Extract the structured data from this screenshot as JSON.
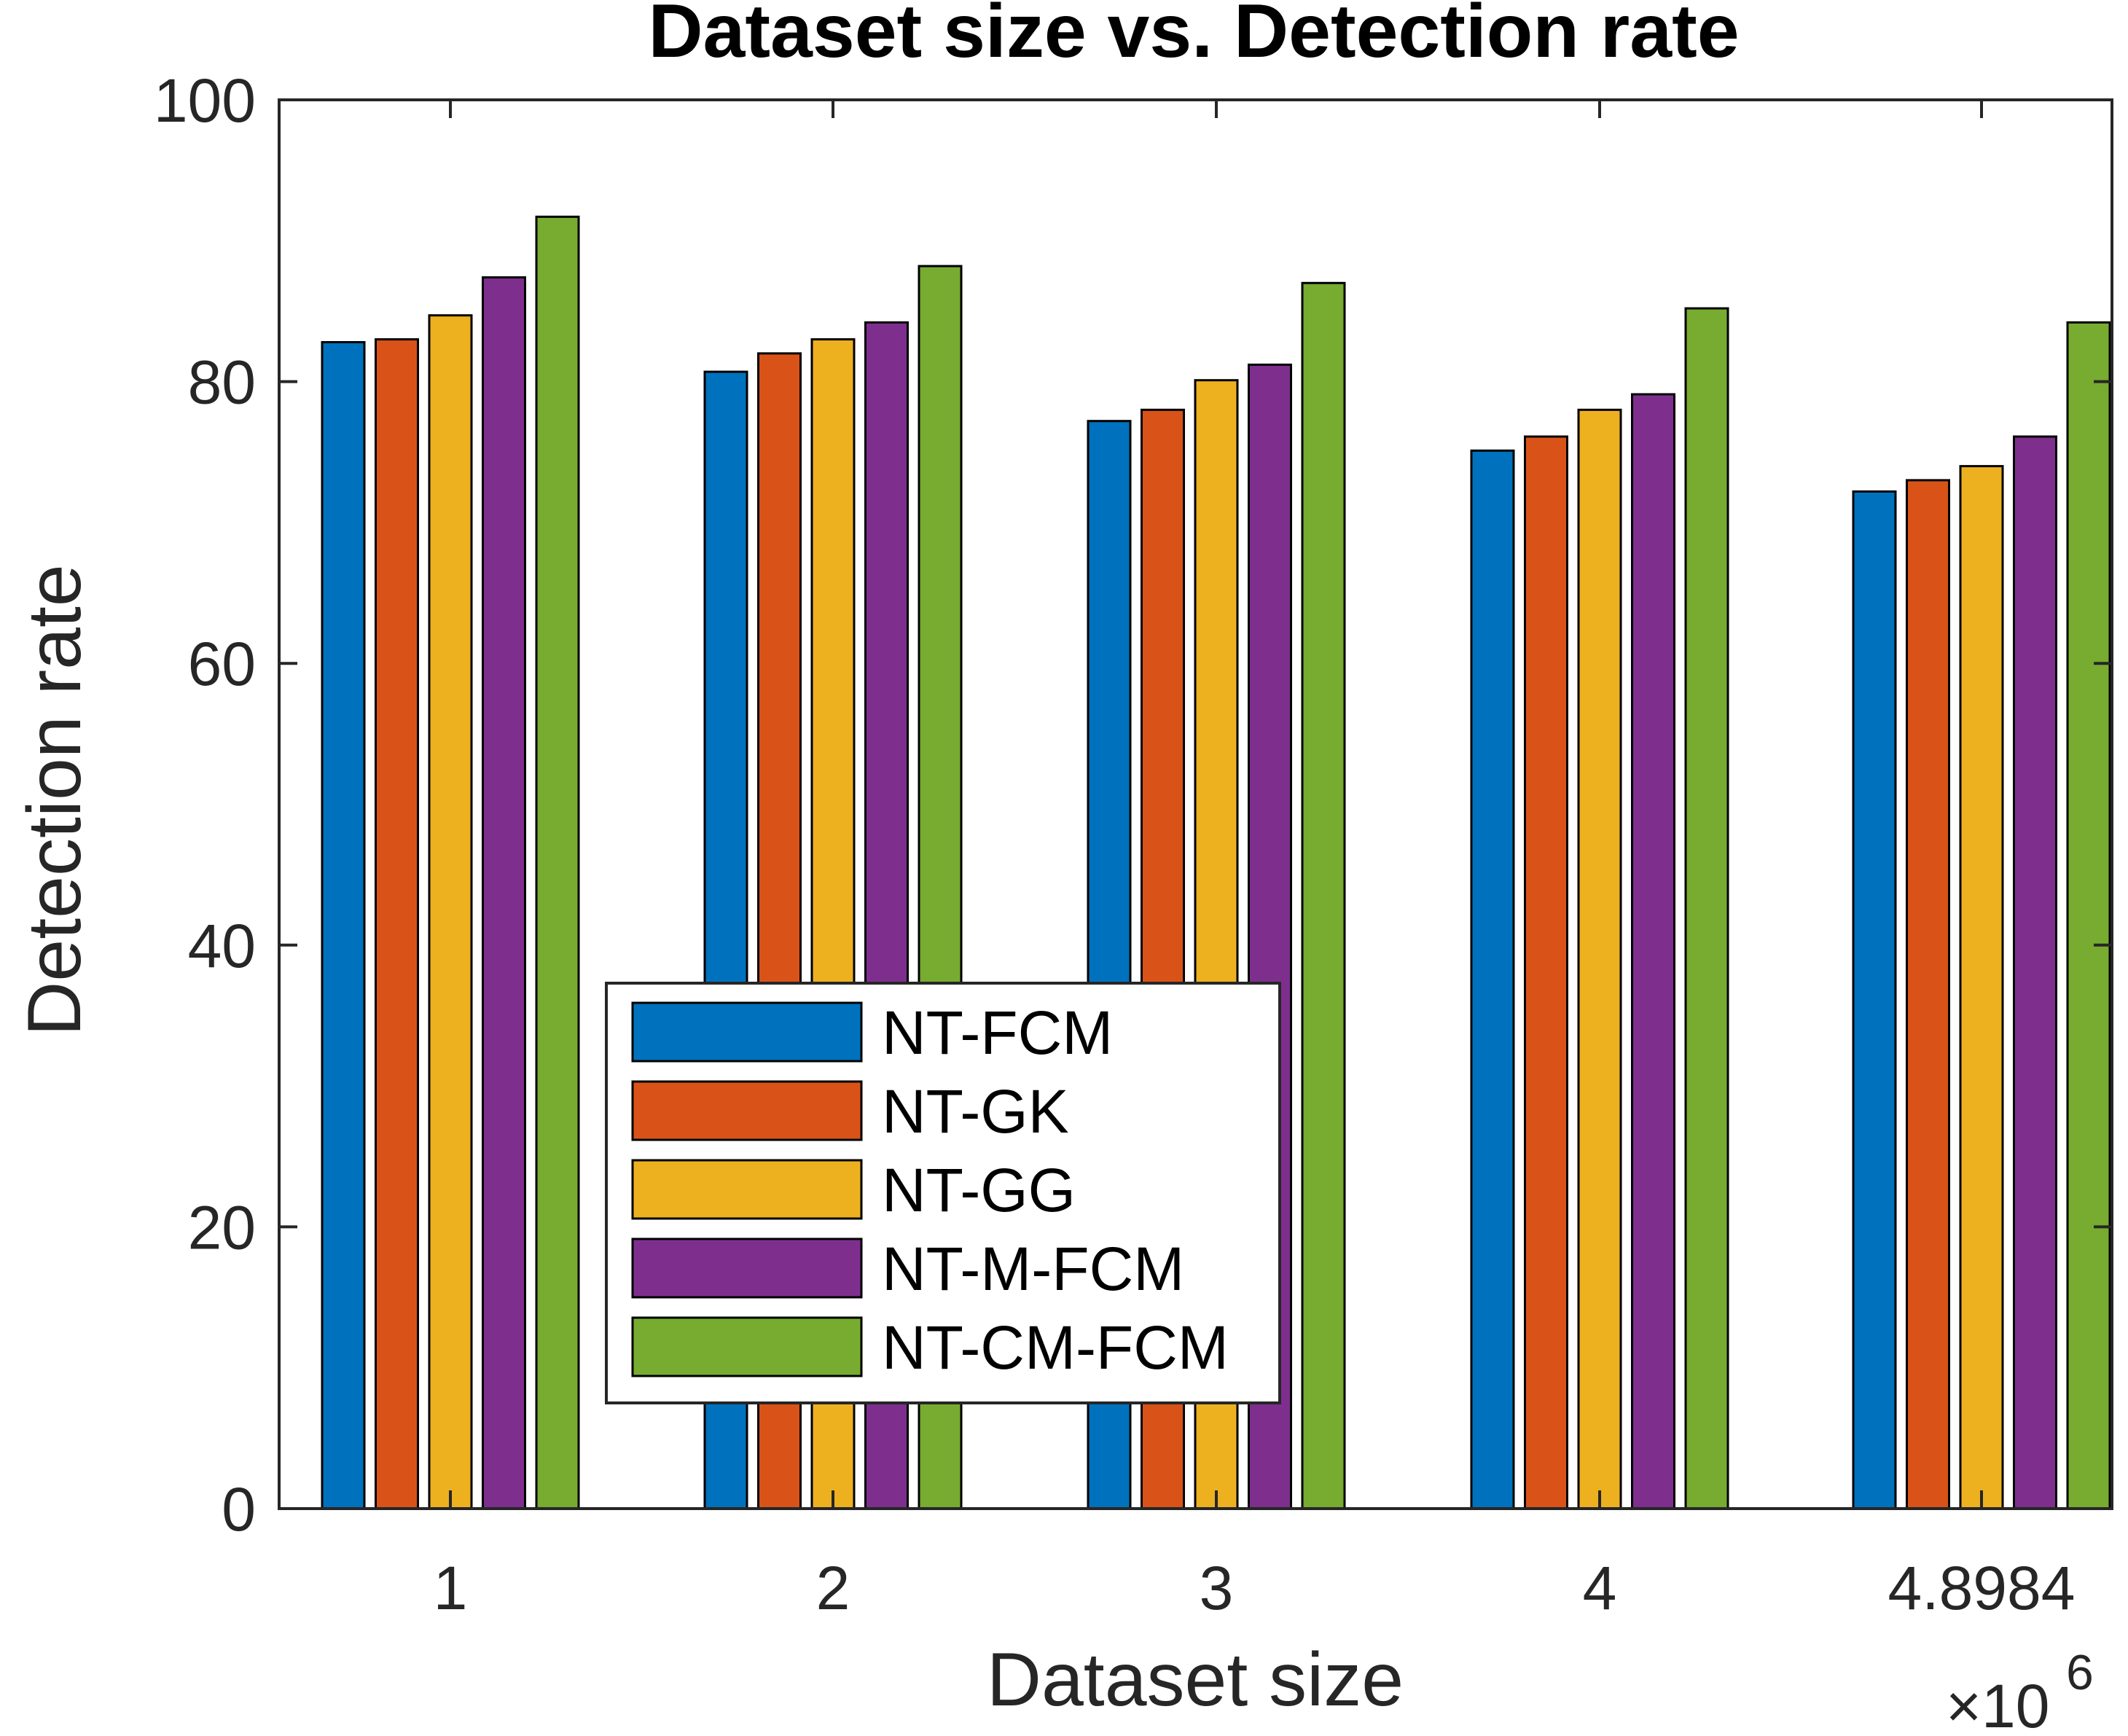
{
  "chart_data": {
    "type": "bar",
    "title": "Dataset size vs. Detection rate",
    "xlabel": "Dataset size",
    "ylabel": "Detection rate",
    "x_exponent_base": "×10",
    "x_exponent_power": "6",
    "categories": [
      "1",
      "2",
      "3",
      "4",
      "4.8984"
    ],
    "ylim": [
      0,
      100
    ],
    "yticks": [
      0,
      20,
      40,
      60,
      80,
      100
    ],
    "grid": false,
    "legend_position": "lower-center",
    "series": [
      {
        "name": "NT-FCM",
        "color": "#0072BD",
        "values": [
          82.8,
          80.7,
          77.2,
          75.1,
          72.2
        ]
      },
      {
        "name": "NT-GK",
        "color": "#D95319",
        "values": [
          83.0,
          82.0,
          78.0,
          76.1,
          73.0
        ]
      },
      {
        "name": "NT-GG",
        "color": "#EDB120",
        "values": [
          84.7,
          83.0,
          80.1,
          78.0,
          74.0
        ]
      },
      {
        "name": "NT-M-FCM",
        "color": "#7E2F8E",
        "values": [
          87.4,
          84.2,
          81.2,
          79.1,
          76.1
        ]
      },
      {
        "name": "NT-CM-FCM",
        "color": "#77AC30",
        "values": [
          91.7,
          88.2,
          87.0,
          85.2,
          84.2
        ]
      }
    ]
  }
}
